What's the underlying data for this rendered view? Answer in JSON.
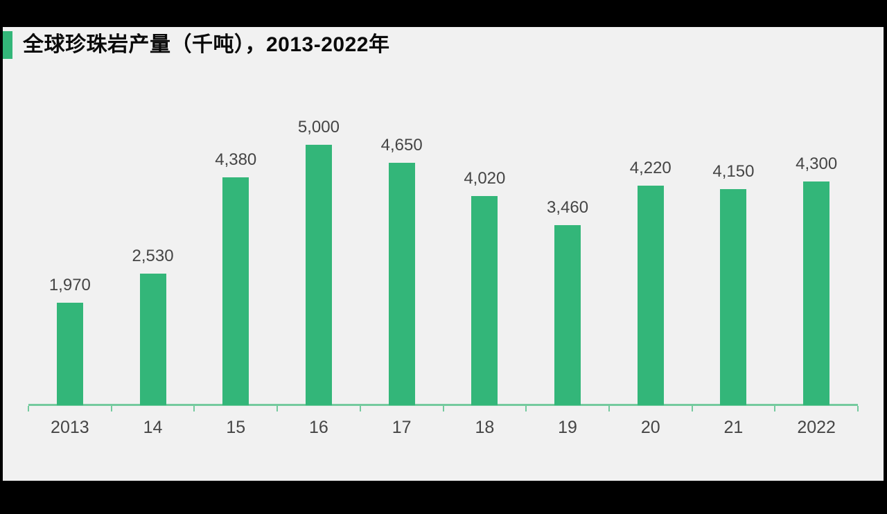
{
  "frame": {
    "background": "#000000",
    "content_background": "#f1f1f1"
  },
  "header": {
    "title": "全球珍珠岩产量（千吨），2013-2022年",
    "accent_color": "#33b679"
  },
  "chart_data": {
    "type": "bar",
    "title": "全球珍珠岩产量（千吨），2013-2022年",
    "categories": [
      "2013",
      "14",
      "15",
      "16",
      "17",
      "18",
      "19",
      "20",
      "21",
      "2022"
    ],
    "values": [
      1970,
      2530,
      4380,
      5000,
      4650,
      4020,
      3460,
      4220,
      4150,
      4300
    ],
    "value_labels": [
      "1,970",
      "2,530",
      "4,380",
      "5,000",
      "4,650",
      "4,020",
      "3,460",
      "4,220",
      "4,150",
      "4,300"
    ],
    "xlabel": "",
    "ylabel": "",
    "ylim": [
      0,
      5000
    ],
    "grid": false,
    "legend": false,
    "bar_color": "#33b679",
    "axis_color": "#74ca9e",
    "label_color": "#454545"
  }
}
